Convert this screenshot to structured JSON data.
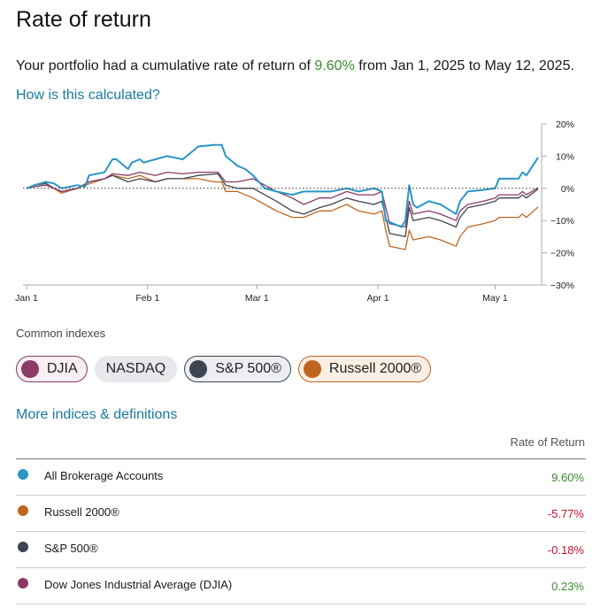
{
  "title": "Rate of return",
  "summary": {
    "prefix": "Your portfolio had a cumulative rate of return of",
    "rate": "9.60%",
    "suffix": "from Jan 1, 2025 to May 12, 2025."
  },
  "how_link": "How is this calculated?",
  "chart_data": {
    "type": "line",
    "x_labels": [
      "Jan 1",
      "Feb 1",
      "Mar 1",
      "Apr 1",
      "May 1"
    ],
    "y_tick_labels": [
      "20%",
      "10%",
      "0%",
      "−10%",
      "−20%",
      "−30%"
    ],
    "y_ticks": [
      20,
      10,
      0,
      -10,
      -20,
      -30
    ],
    "ylim": [
      -30,
      20
    ],
    "xlim": [
      "2025-01-01",
      "2025-05-12"
    ],
    "zero_line": "dotted",
    "grid": false,
    "series": [
      {
        "name": "All Brokerage Accounts",
        "color": "#2a96c5",
        "points": [
          [
            "2025-01-01",
            0
          ],
          [
            "2025-01-03",
            1
          ],
          [
            "2025-01-06",
            2
          ],
          [
            "2025-01-08",
            1.5
          ],
          [
            "2025-01-10",
            0
          ],
          [
            "2025-01-14",
            1
          ],
          [
            "2025-01-16",
            0.5
          ],
          [
            "2025-01-17",
            4
          ],
          [
            "2025-01-21",
            5
          ],
          [
            "2025-01-23",
            9
          ],
          [
            "2025-01-24",
            9
          ],
          [
            "2025-01-27",
            6
          ],
          [
            "2025-01-28",
            8
          ],
          [
            "2025-01-30",
            9
          ],
          [
            "2025-01-31",
            8
          ],
          [
            "2025-02-03",
            9
          ],
          [
            "2025-02-06",
            10
          ],
          [
            "2025-02-10",
            9
          ],
          [
            "2025-02-13",
            12
          ],
          [
            "2025-02-14",
            13
          ],
          [
            "2025-02-18",
            13.5
          ],
          [
            "2025-02-20",
            13.5
          ],
          [
            "2025-02-21",
            10
          ],
          [
            "2025-02-24",
            7
          ],
          [
            "2025-02-26",
            6
          ],
          [
            "2025-02-28",
            4
          ],
          [
            "2025-03-03",
            0
          ],
          [
            "2025-03-06",
            -1
          ],
          [
            "2025-03-10",
            -2
          ],
          [
            "2025-03-13",
            -1
          ],
          [
            "2025-03-17",
            -1
          ],
          [
            "2025-03-20",
            -1
          ],
          [
            "2025-03-24",
            0
          ],
          [
            "2025-03-27",
            -1
          ],
          [
            "2025-03-31",
            0
          ],
          [
            "2025-04-02",
            -1
          ],
          [
            "2025-04-03",
            -10
          ],
          [
            "2025-04-07",
            -12
          ],
          [
            "2025-04-08",
            -10
          ],
          [
            "2025-04-09",
            1
          ],
          [
            "2025-04-10",
            -5
          ],
          [
            "2025-04-11",
            -6
          ],
          [
            "2025-04-14",
            -4
          ],
          [
            "2025-04-17",
            -5
          ],
          [
            "2025-04-21",
            -8
          ],
          [
            "2025-04-22",
            -4
          ],
          [
            "2025-04-24",
            -1
          ],
          [
            "2025-04-28",
            -0.5
          ],
          [
            "2025-05-01",
            0
          ],
          [
            "2025-05-02",
            3
          ],
          [
            "2025-05-07",
            3
          ],
          [
            "2025-05-08",
            5
          ],
          [
            "2025-05-09",
            4
          ],
          [
            "2025-05-12",
            9.6
          ]
        ]
      },
      {
        "name": "Russell 2000®",
        "color": "#c0651f",
        "points": [
          [
            "2025-01-01",
            0
          ],
          [
            "2025-01-03",
            1
          ],
          [
            "2025-01-06",
            1.5
          ],
          [
            "2025-01-08",
            0
          ],
          [
            "2025-01-10",
            -1.5
          ],
          [
            "2025-01-14",
            0
          ],
          [
            "2025-01-16",
            1
          ],
          [
            "2025-01-21",
            3
          ],
          [
            "2025-01-23",
            4
          ],
          [
            "2025-01-27",
            3
          ],
          [
            "2025-01-30",
            4
          ],
          [
            "2025-02-03",
            2
          ],
          [
            "2025-02-06",
            3
          ],
          [
            "2025-02-10",
            3
          ],
          [
            "2025-02-14",
            3
          ],
          [
            "2025-02-18",
            2
          ],
          [
            "2025-02-20",
            2
          ],
          [
            "2025-02-21",
            -1
          ],
          [
            "2025-02-24",
            -1
          ],
          [
            "2025-02-28",
            -3
          ],
          [
            "2025-03-03",
            -5
          ],
          [
            "2025-03-06",
            -7
          ],
          [
            "2025-03-10",
            -9
          ],
          [
            "2025-03-13",
            -9
          ],
          [
            "2025-03-17",
            -7
          ],
          [
            "2025-03-20",
            -7
          ],
          [
            "2025-03-24",
            -5
          ],
          [
            "2025-03-27",
            -7
          ],
          [
            "2025-03-31",
            -8
          ],
          [
            "2025-04-02",
            -7
          ],
          [
            "2025-04-03",
            -13
          ],
          [
            "2025-04-04",
            -18
          ],
          [
            "2025-04-08",
            -19
          ],
          [
            "2025-04-09",
            -13
          ],
          [
            "2025-04-10",
            -16
          ],
          [
            "2025-04-14",
            -15
          ],
          [
            "2025-04-17",
            -16
          ],
          [
            "2025-04-21",
            -18
          ],
          [
            "2025-04-22",
            -15
          ],
          [
            "2025-04-24",
            -12
          ],
          [
            "2025-04-28",
            -11
          ],
          [
            "2025-05-01",
            -10
          ],
          [
            "2025-05-02",
            -9
          ],
          [
            "2025-05-07",
            -9
          ],
          [
            "2025-05-08",
            -8
          ],
          [
            "2025-05-09",
            -9
          ],
          [
            "2025-05-12",
            -5.77
          ]
        ]
      },
      {
        "name": "S&P 500®",
        "color": "#3d4552",
        "points": [
          [
            "2025-01-01",
            0
          ],
          [
            "2025-01-03",
            1
          ],
          [
            "2025-01-06",
            1.5
          ],
          [
            "2025-01-08",
            0
          ],
          [
            "2025-01-10",
            -1
          ],
          [
            "2025-01-14",
            0
          ],
          [
            "2025-01-17",
            2
          ],
          [
            "2025-01-21",
            3
          ],
          [
            "2025-01-23",
            4
          ],
          [
            "2025-01-27",
            2
          ],
          [
            "2025-01-30",
            3
          ],
          [
            "2025-02-03",
            2
          ],
          [
            "2025-02-06",
            3
          ],
          [
            "2025-02-10",
            3
          ],
          [
            "2025-02-14",
            4
          ],
          [
            "2025-02-19",
            4.5
          ],
          [
            "2025-02-21",
            1
          ],
          [
            "2025-02-24",
            0
          ],
          [
            "2025-02-28",
            0
          ],
          [
            "2025-03-03",
            -2
          ],
          [
            "2025-03-06",
            -4
          ],
          [
            "2025-03-10",
            -7
          ],
          [
            "2025-03-13",
            -8
          ],
          [
            "2025-03-17",
            -6
          ],
          [
            "2025-03-20",
            -5
          ],
          [
            "2025-03-24",
            -3
          ],
          [
            "2025-03-27",
            -4
          ],
          [
            "2025-03-31",
            -5
          ],
          [
            "2025-04-02",
            -4
          ],
          [
            "2025-04-03",
            -9
          ],
          [
            "2025-04-04",
            -14
          ],
          [
            "2025-04-08",
            -15
          ],
          [
            "2025-04-09",
            -6
          ],
          [
            "2025-04-10",
            -10
          ],
          [
            "2025-04-14",
            -9
          ],
          [
            "2025-04-17",
            -10
          ],
          [
            "2025-04-21",
            -12
          ],
          [
            "2025-04-22",
            -9
          ],
          [
            "2025-04-24",
            -6
          ],
          [
            "2025-04-28",
            -5
          ],
          [
            "2025-05-01",
            -4
          ],
          [
            "2025-05-02",
            -3
          ],
          [
            "2025-05-07",
            -3
          ],
          [
            "2025-05-08",
            -2
          ],
          [
            "2025-05-09",
            -3
          ],
          [
            "2025-05-12",
            -0.18
          ]
        ]
      },
      {
        "name": "Dow Jones Industrial Average (DJIA)",
        "color": "#8b3a63",
        "points": [
          [
            "2025-01-01",
            0
          ],
          [
            "2025-01-03",
            0.5
          ],
          [
            "2025-01-06",
            1
          ],
          [
            "2025-01-08",
            0
          ],
          [
            "2025-01-10",
            -1
          ],
          [
            "2025-01-14",
            0
          ],
          [
            "2025-01-17",
            2
          ],
          [
            "2025-01-21",
            3
          ],
          [
            "2025-01-23",
            4.5
          ],
          [
            "2025-01-27",
            4
          ],
          [
            "2025-01-30",
            5
          ],
          [
            "2025-02-03",
            4
          ],
          [
            "2025-02-06",
            5
          ],
          [
            "2025-02-10",
            4.5
          ],
          [
            "2025-02-14",
            5
          ],
          [
            "2025-02-19",
            5
          ],
          [
            "2025-02-21",
            2
          ],
          [
            "2025-02-24",
            2
          ],
          [
            "2025-02-28",
            3
          ],
          [
            "2025-03-03",
            1
          ],
          [
            "2025-03-06",
            -1
          ],
          [
            "2025-03-10",
            -3
          ],
          [
            "2025-03-13",
            -5
          ],
          [
            "2025-03-17",
            -3
          ],
          [
            "2025-03-20",
            -3
          ],
          [
            "2025-03-24",
            -1
          ],
          [
            "2025-03-27",
            -2
          ],
          [
            "2025-03-31",
            -2
          ],
          [
            "2025-04-02",
            -1
          ],
          [
            "2025-04-03",
            -6
          ],
          [
            "2025-04-04",
            -11
          ],
          [
            "2025-04-08",
            -12
          ],
          [
            "2025-04-09",
            -4
          ],
          [
            "2025-04-10",
            -8
          ],
          [
            "2025-04-14",
            -7
          ],
          [
            "2025-04-17",
            -8
          ],
          [
            "2025-04-21",
            -10
          ],
          [
            "2025-04-22",
            -7
          ],
          [
            "2025-04-24",
            -5
          ],
          [
            "2025-04-28",
            -4
          ],
          [
            "2025-05-01",
            -3
          ],
          [
            "2025-05-02",
            -2
          ],
          [
            "2025-05-07",
            -2
          ],
          [
            "2025-05-08",
            -1
          ],
          [
            "2025-05-09",
            -2
          ],
          [
            "2025-05-12",
            0.23
          ]
        ]
      }
    ]
  },
  "indexes_label": "Common indexes",
  "chips": [
    {
      "label": "DJIA",
      "color": "#8b3a63"
    },
    {
      "label": "NASDAQ",
      "color": ""
    },
    {
      "label": "S&P 500®",
      "color": "#3d4552"
    },
    {
      "label": "Russell 2000®",
      "color": "#c0651f"
    }
  ],
  "more_link": "More indices & definitions",
  "table": {
    "header": "Rate of Return",
    "rows": [
      {
        "name": "All Brokerage Accounts",
        "value": "9.60%",
        "color": "#2a96c5",
        "sign": "pos"
      },
      {
        "name": "Russell 2000®",
        "value": "-5.77%",
        "color": "#c0651f",
        "sign": "neg"
      },
      {
        "name": "S&P 500®",
        "value": "-0.18%",
        "color": "#3d4552",
        "sign": "neg"
      },
      {
        "name": "Dow Jones Industrial Average (DJIA)",
        "value": "0.23%",
        "color": "#8b3a63",
        "sign": "pos"
      }
    ]
  }
}
